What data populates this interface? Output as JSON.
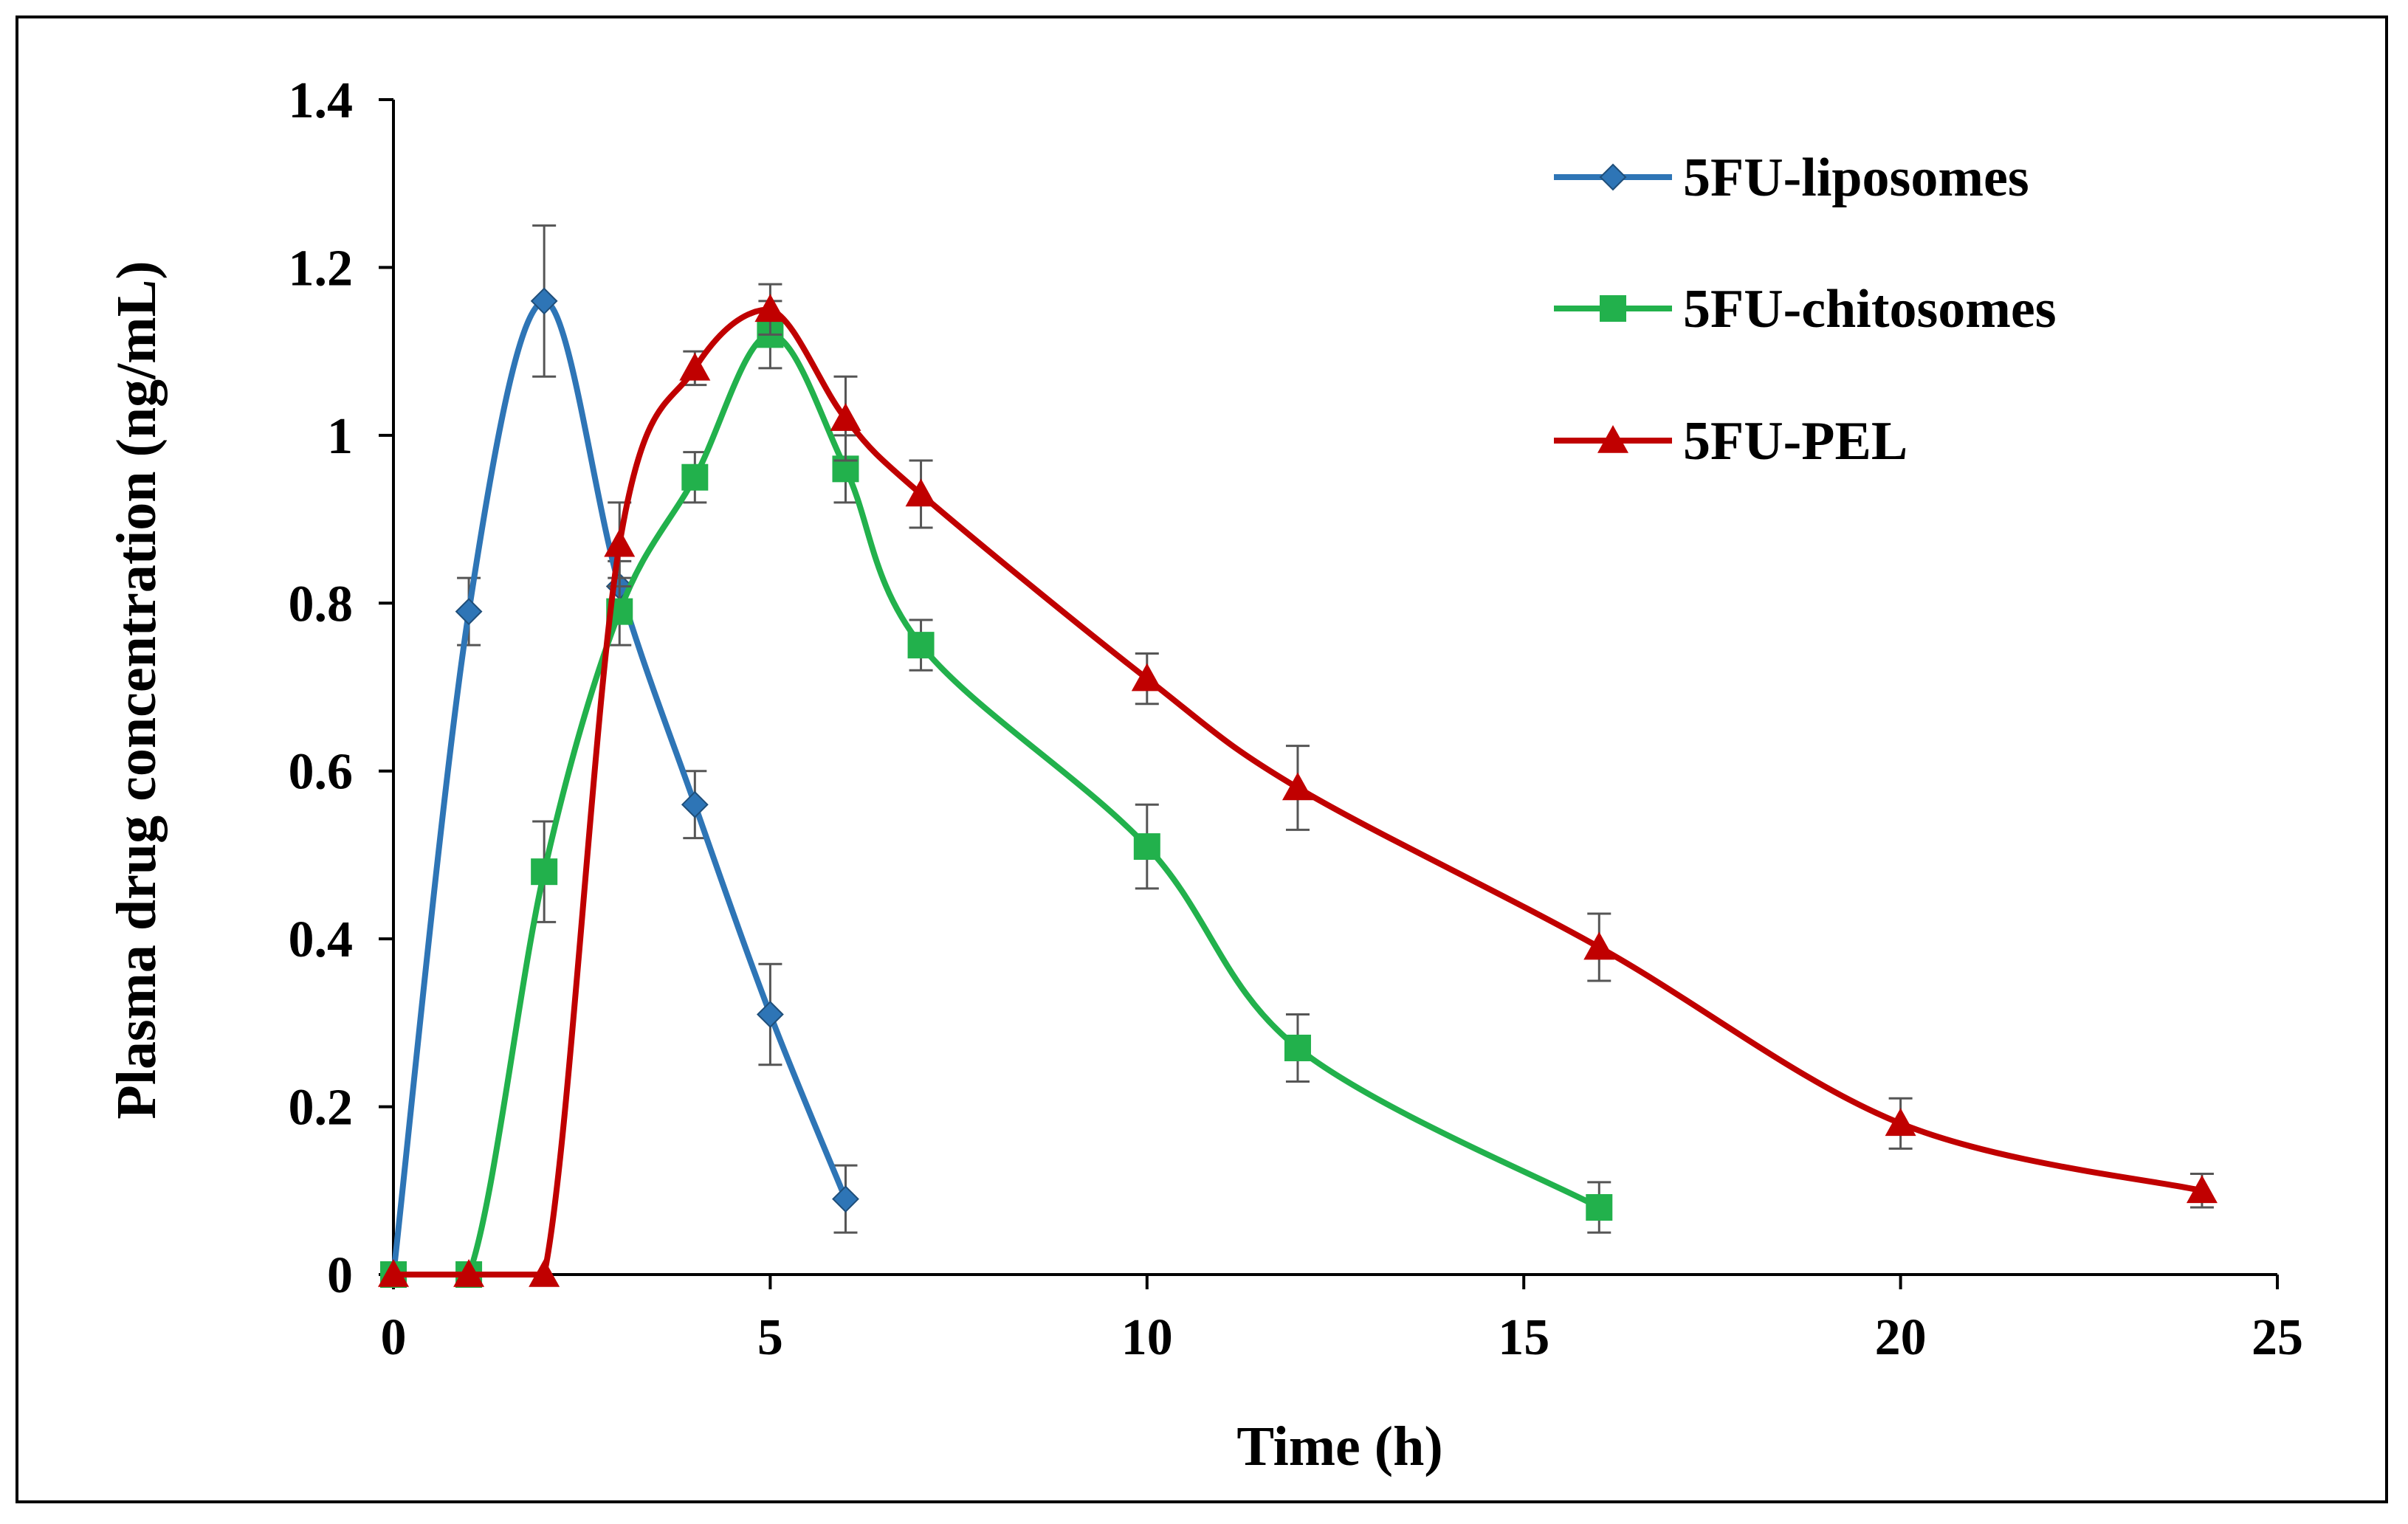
{
  "chart_data": {
    "type": "line",
    "title": "",
    "xlabel": "Time (h)",
    "ylabel": "Plasma drug concentration (ng/mL)",
    "xlim": [
      0,
      25
    ],
    "ylim": [
      0,
      1.4
    ],
    "x_ticks": [
      0,
      5,
      10,
      15,
      20,
      25
    ],
    "x_tick_labels": [
      "0",
      "5",
      "10",
      "15",
      "20",
      "25"
    ],
    "y_ticks": [
      0,
      0.2,
      0.4,
      0.6,
      0.8,
      1.0,
      1.2,
      1.4
    ],
    "y_tick_labels": [
      "0",
      "0.2",
      "0.4",
      "0.6",
      "0.8",
      "1",
      "1.2",
      "1.4"
    ],
    "grid": false,
    "legend_position": "top-right",
    "series": [
      {
        "name": "5FU-liposomes",
        "color": "#2E75B6",
        "marker": "diamond",
        "x": [
          0,
          1,
          2,
          3,
          4,
          5,
          6
        ],
        "y": [
          0,
          0.79,
          1.16,
          0.82,
          0.56,
          0.31,
          0.09
        ],
        "error": [
          0,
          0.04,
          0.09,
          0.03,
          0.04,
          0.06,
          0.04
        ]
      },
      {
        "name": "5FU-chitosomes",
        "color": "#22B14C",
        "marker": "square",
        "x": [
          0,
          1,
          2,
          3,
          4,
          5,
          6,
          7,
          10,
          12,
          16
        ],
        "y": [
          0,
          0,
          0.48,
          0.79,
          0.95,
          1.12,
          0.96,
          0.75,
          0.51,
          0.27,
          0.08
        ],
        "error": [
          0,
          0,
          0.06,
          0.04,
          0.03,
          0.04,
          0.04,
          0.03,
          0.05,
          0.04,
          0.03
        ]
      },
      {
        "name": "5FU-PEL",
        "color": "#C00000",
        "marker": "triangle",
        "x": [
          0,
          1,
          2,
          3,
          4,
          5,
          6,
          7,
          10,
          12,
          16,
          20,
          24
        ],
        "y": [
          0,
          0,
          0,
          0.87,
          1.08,
          1.15,
          1.02,
          0.93,
          0.71,
          0.58,
          0.39,
          0.18,
          0.1
        ],
        "error": [
          0,
          0,
          0,
          0.05,
          0.02,
          0.03,
          0.05,
          0.04,
          0.03,
          0.05,
          0.04,
          0.03,
          0.02
        ]
      }
    ]
  }
}
